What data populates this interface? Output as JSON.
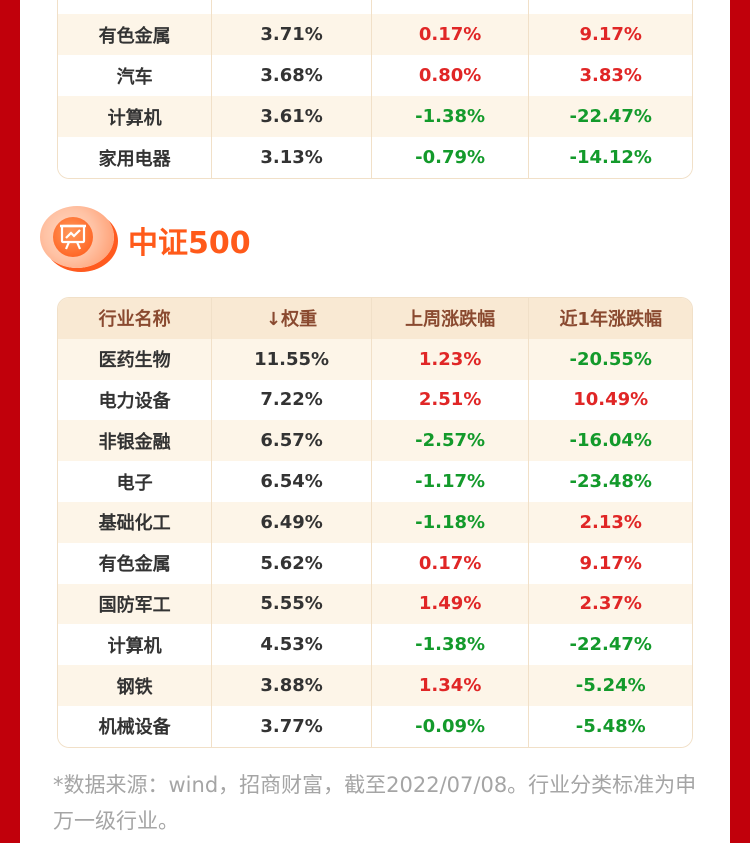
{
  "table_top": {
    "rows": [
      {
        "name": "—",
        "weight": "—",
        "week": "—",
        "year": "—",
        "week_dir": "up",
        "year_dir": "up"
      },
      {
        "name": "有色金属",
        "weight": "3.71%",
        "week": "0.17%",
        "year": "9.17%",
        "week_dir": "up",
        "year_dir": "up"
      },
      {
        "name": "汽车",
        "weight": "3.68%",
        "week": "0.80%",
        "year": "3.83%",
        "week_dir": "up",
        "year_dir": "up"
      },
      {
        "name": "计算机",
        "weight": "3.61%",
        "week": "-1.38%",
        "year": "-22.47%",
        "week_dir": "down",
        "year_dir": "down"
      },
      {
        "name": "家用电器",
        "weight": "3.13%",
        "week": "-0.79%",
        "year": "-14.12%",
        "week_dir": "down",
        "year_dir": "down"
      }
    ]
  },
  "section": {
    "title": "中证500",
    "icon": "chart-board-icon"
  },
  "table_main": {
    "headers": {
      "name": "行业名称",
      "weight": "↓权重",
      "week": "上周涨跌幅",
      "year": "近1年涨跌幅"
    },
    "rows": [
      {
        "name": "医药生物",
        "weight": "11.55%",
        "week": "1.23%",
        "year": "-20.55%",
        "week_dir": "up",
        "year_dir": "down"
      },
      {
        "name": "电力设备",
        "weight": "7.22%",
        "week": "2.51%",
        "year": "10.49%",
        "week_dir": "up",
        "year_dir": "up"
      },
      {
        "name": "非银金融",
        "weight": "6.57%",
        "week": "-2.57%",
        "year": "-16.04%",
        "week_dir": "down",
        "year_dir": "down"
      },
      {
        "name": "电子",
        "weight": "6.54%",
        "week": "-1.17%",
        "year": "-23.48%",
        "week_dir": "down",
        "year_dir": "down"
      },
      {
        "name": "基础化工",
        "weight": "6.49%",
        "week": "-1.18%",
        "year": "2.13%",
        "week_dir": "down",
        "year_dir": "up"
      },
      {
        "name": "有色金属",
        "weight": "5.62%",
        "week": "0.17%",
        "year": "9.17%",
        "week_dir": "up",
        "year_dir": "up"
      },
      {
        "name": "国防军工",
        "weight": "5.55%",
        "week": "1.49%",
        "year": "2.37%",
        "week_dir": "up",
        "year_dir": "up"
      },
      {
        "name": "计算机",
        "weight": "4.53%",
        "week": "-1.38%",
        "year": "-22.47%",
        "week_dir": "down",
        "year_dir": "down"
      },
      {
        "name": "钢铁",
        "weight": "3.88%",
        "week": "1.34%",
        "year": "-5.24%",
        "week_dir": "up",
        "year_dir": "down"
      },
      {
        "name": "机械设备",
        "weight": "3.77%",
        "week": "-0.09%",
        "year": "-5.48%",
        "week_dir": "down",
        "year_dir": "down"
      }
    ]
  },
  "footnote": "*数据来源：wind，招商财富，截至2022/07/08。行业分类标准为申万一级行业。",
  "colors": {
    "up": "#e02626",
    "down": "#139a2b",
    "accent": "#ff5a1a",
    "frame": "#c1000b"
  }
}
